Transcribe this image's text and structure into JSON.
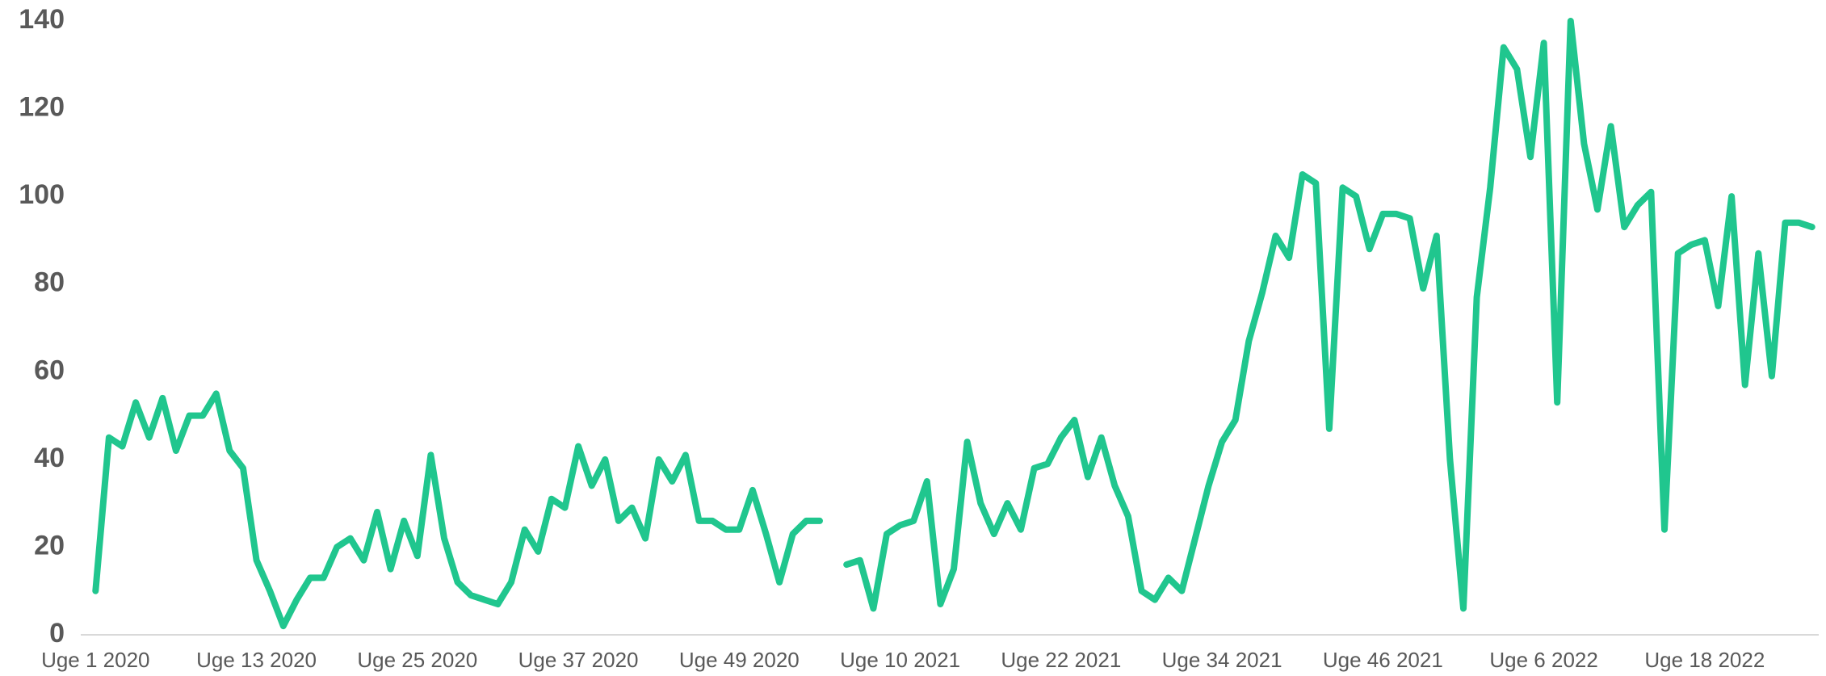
{
  "chart_data": {
    "type": "line",
    "categories": [
      "Uge 1 2020",
      null,
      null,
      null,
      null,
      null,
      null,
      null,
      null,
      null,
      null,
      null,
      "Uge 13 2020",
      null,
      null,
      null,
      null,
      null,
      null,
      null,
      null,
      null,
      null,
      null,
      "Uge 25 2020",
      null,
      null,
      null,
      null,
      null,
      null,
      null,
      null,
      null,
      null,
      null,
      "Uge 37 2020",
      null,
      null,
      null,
      null,
      null,
      null,
      null,
      null,
      null,
      null,
      null,
      "Uge 49 2020",
      null,
      null,
      null,
      null,
      null,
      null,
      null,
      null,
      null,
      null,
      null,
      "Uge 10 2021",
      null,
      null,
      null,
      null,
      null,
      null,
      null,
      null,
      null,
      null,
      null,
      "Uge 22 2021",
      null,
      null,
      null,
      null,
      null,
      null,
      null,
      null,
      null,
      null,
      null,
      "Uge 34 2021",
      null,
      null,
      null,
      null,
      null,
      null,
      null,
      null,
      null,
      null,
      null,
      "Uge 46 2021",
      null,
      null,
      null,
      null,
      null,
      null,
      null,
      null,
      null,
      null,
      null,
      "Uge 6 2022",
      null,
      null,
      null,
      null,
      null,
      null,
      null,
      null,
      null,
      null,
      null,
      "Uge 18 2022",
      null,
      null,
      null,
      null,
      null,
      null,
      null,
      null
    ],
    "series": [
      {
        "color": "#20c68e",
        "values": [
          10,
          45,
          43,
          53,
          45,
          54,
          42,
          50,
          50,
          55,
          42,
          38,
          17,
          10,
          2,
          8,
          13,
          13,
          20,
          22,
          17,
          28,
          15,
          26,
          18,
          41,
          22,
          12,
          9,
          8,
          7,
          12,
          24,
          19,
          31,
          29,
          43,
          34,
          40,
          26,
          29,
          22,
          40,
          35,
          41,
          26,
          26,
          24,
          24,
          33,
          23,
          12,
          23,
          26,
          26,
          null,
          16,
          17,
          6,
          23,
          25,
          26,
          35,
          7,
          15,
          44,
          30,
          23,
          30,
          24,
          38,
          39,
          45,
          49,
          36,
          45,
          34,
          27,
          10,
          8,
          13,
          10,
          22,
          34,
          44,
          49,
          67,
          78,
          91,
          86,
          105,
          103,
          47,
          102,
          100,
          88,
          96,
          96,
          95,
          79,
          91,
          40,
          6,
          77,
          102,
          134,
          129,
          109,
          135,
          53,
          140,
          112,
          97,
          116,
          93,
          98,
          101,
          24,
          87,
          89,
          90,
          75,
          100,
          57,
          87,
          59,
          94,
          94,
          93
        ]
      }
    ],
    "ylim": [
      0,
      140
    ],
    "yticks": [
      0,
      20,
      40,
      60,
      80,
      100,
      120,
      140
    ],
    "grid": false
  }
}
